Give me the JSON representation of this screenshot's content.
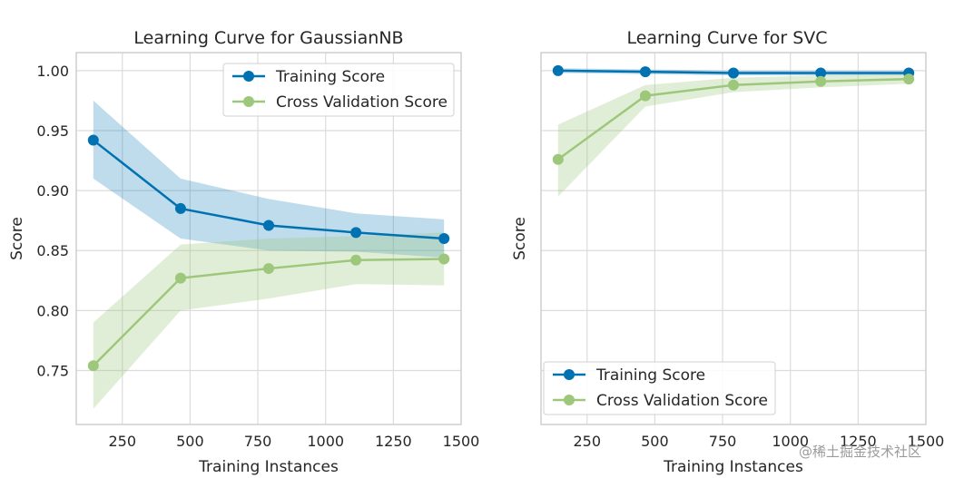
{
  "chart_data": [
    {
      "type": "line",
      "title": "Learning Curve for GaussianNB",
      "xlabel": "Training Instances",
      "ylabel": "Score",
      "xlim": [
        80,
        1500
      ],
      "ylim": [
        0.705,
        1.015
      ],
      "xticks": [
        250,
        500,
        750,
        1000,
        1250,
        1500
      ],
      "xtick_labels": [
        "250",
        "500",
        "750",
        "1000",
        "1250",
        "1500"
      ],
      "yticks": [
        0.75,
        0.8,
        0.85,
        0.9,
        0.95,
        1.0
      ],
      "ytick_labels": [
        "0.75",
        "0.80",
        "0.85",
        "0.90",
        "0.95",
        "1.00"
      ],
      "legend_position": "top-right",
      "x": [
        143,
        465,
        790,
        1112,
        1437
      ],
      "series": [
        {
          "name": "Training Score",
          "color": "#0072b2",
          "values": [
            0.942,
            0.885,
            0.871,
            0.865,
            0.86
          ],
          "lower": [
            0.91,
            0.86,
            0.85,
            0.849,
            0.844
          ],
          "upper": [
            0.975,
            0.91,
            0.893,
            0.881,
            0.876
          ]
        },
        {
          "name": "Cross Validation Score",
          "color": "#9dc77a",
          "values": [
            0.754,
            0.827,
            0.835,
            0.842,
            0.843
          ],
          "lower": [
            0.718,
            0.8,
            0.81,
            0.822,
            0.821
          ],
          "upper": [
            0.79,
            0.855,
            0.86,
            0.862,
            0.865
          ]
        }
      ]
    },
    {
      "type": "line",
      "title": "Learning Curve for SVC",
      "xlabel": "Training Instances",
      "ylabel": "Score",
      "xlim": [
        80,
        1500
      ],
      "ylim": [
        0.705,
        1.015
      ],
      "xticks": [
        250,
        500,
        750,
        1000,
        1250,
        1500
      ],
      "xtick_labels": [
        "250",
        "500",
        "750",
        "1000",
        "1250",
        "1500"
      ],
      "yticks": [
        0.75,
        0.8,
        0.85,
        0.9,
        0.95,
        1.0
      ],
      "ytick_labels": [],
      "legend_position": "bottom-left",
      "x": [
        143,
        465,
        790,
        1112,
        1437
      ],
      "series": [
        {
          "name": "Training Score",
          "color": "#0072b2",
          "values": [
            1.0,
            0.999,
            0.998,
            0.998,
            0.998
          ],
          "lower": [
            0.998,
            0.997,
            0.996,
            0.996,
            0.996
          ],
          "upper": [
            1.002,
            1.001,
            1.0,
            1.0,
            1.0
          ]
        },
        {
          "name": "Cross Validation Score",
          "color": "#9dc77a",
          "values": [
            0.926,
            0.979,
            0.988,
            0.991,
            0.993
          ],
          "lower": [
            0.895,
            0.97,
            0.982,
            0.986,
            0.989
          ],
          "upper": [
            0.955,
            0.988,
            0.994,
            0.996,
            0.997
          ]
        }
      ]
    }
  ],
  "watermark": "@稀土掘金技术社区"
}
